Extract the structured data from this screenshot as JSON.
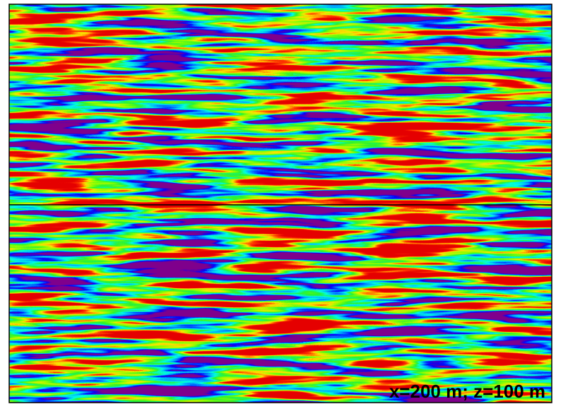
{
  "image": {
    "annotation": "x=200 m; z=100 m"
  }
}
